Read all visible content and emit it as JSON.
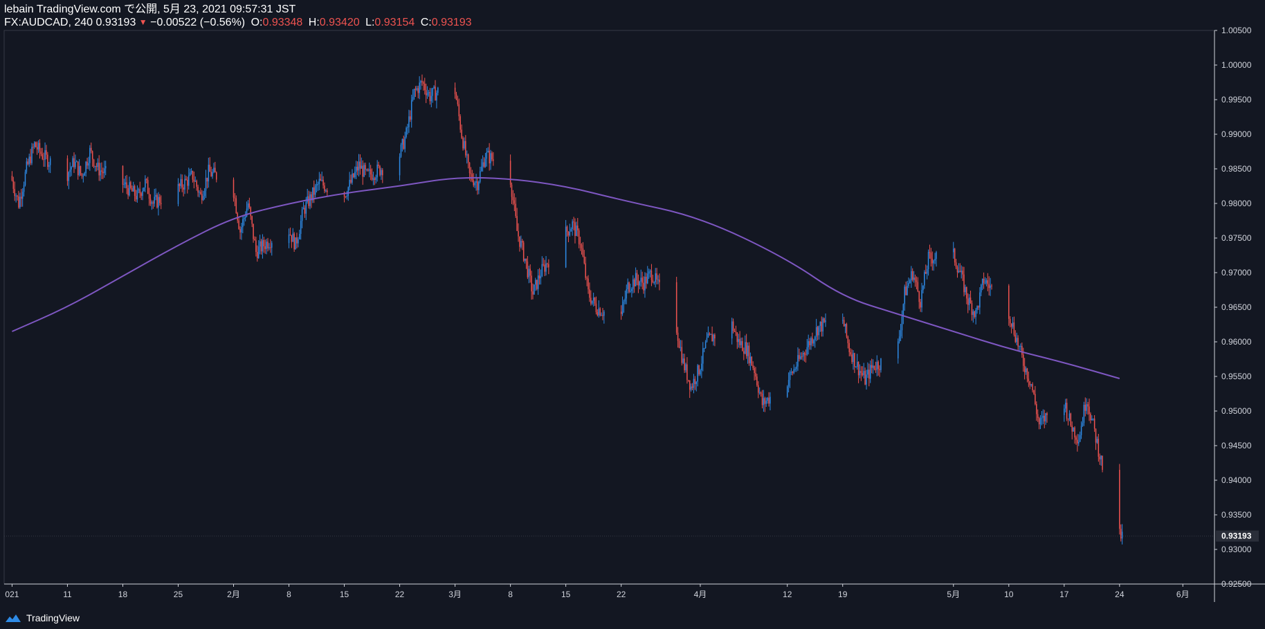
{
  "header": {
    "published": "lebain TradingView.com で公開, 5月 23, 2021 09:57:31 JST",
    "symbol": "FX:AUDCAD, 240",
    "last": "0.93193",
    "change": "−0.00522 (−0.56%)",
    "o_label": "O:",
    "o_value": "0.93348",
    "h_label": "H:",
    "h_value": "0.93420",
    "l_label": "L:",
    "l_value": "0.93154",
    "c_label": "C:",
    "c_value": "0.93193"
  },
  "footer": {
    "brand": "TradingView"
  },
  "colors": {
    "up": "#2e8be6",
    "down": "#ef5350",
    "ma": "#7e57c2",
    "bg": "#131722",
    "axis": "#d1d4dc"
  },
  "chart_data": {
    "type": "candlestick",
    "ylim": [
      0.925,
      1.005
    ],
    "y_ticks": [
      "1.00500",
      "1.00000",
      "0.99500",
      "0.99000",
      "0.98500",
      "0.98000",
      "0.97500",
      "0.97000",
      "0.96500",
      "0.96000",
      "0.95500",
      "0.95000",
      "0.94500",
      "0.94000",
      "0.93500",
      "0.93000",
      "0.92500"
    ],
    "x_ticks": [
      {
        "label": "021",
        "date": "2021-01-04"
      },
      {
        "label": "11",
        "date": "2021-01-11"
      },
      {
        "label": "18",
        "date": "2021-01-18"
      },
      {
        "label": "25",
        "date": "2021-01-25"
      },
      {
        "label": "2月",
        "date": "2021-02-01"
      },
      {
        "label": "8",
        "date": "2021-02-08"
      },
      {
        "label": "15",
        "date": "2021-02-15"
      },
      {
        "label": "22",
        "date": "2021-02-22"
      },
      {
        "label": "3月",
        "date": "2021-03-01"
      },
      {
        "label": "8",
        "date": "2021-03-08"
      },
      {
        "label": "15",
        "date": "2021-03-15"
      },
      {
        "label": "22",
        "date": "2021-03-22"
      },
      {
        "label": "4月",
        "date": "2021-04-01"
      },
      {
        "label": "12",
        "date": "2021-04-12"
      },
      {
        "label": "19",
        "date": "2021-04-19"
      },
      {
        "label": "5月",
        "date": "2021-05-03"
      },
      {
        "label": "10",
        "date": "2021-05-10"
      },
      {
        "label": "17",
        "date": "2021-05-17"
      },
      {
        "label": "24",
        "date": "2021-05-24"
      },
      {
        "label": "6月",
        "date": "2021-06-01"
      }
    ],
    "price_path": [
      [
        "2021-01-04",
        0.984
      ],
      [
        "2021-01-05",
        0.98
      ],
      [
        "2021-01-06",
        0.985
      ],
      [
        "2021-01-07",
        0.9885
      ],
      [
        "2021-01-08",
        0.987
      ],
      [
        "2021-01-11",
        0.984
      ],
      [
        "2021-01-12",
        0.986
      ],
      [
        "2021-01-13",
        0.984
      ],
      [
        "2021-01-14",
        0.9875
      ],
      [
        "2021-01-15",
        0.985
      ],
      [
        "2021-01-18",
        0.983
      ],
      [
        "2021-01-19",
        0.982
      ],
      [
        "2021-01-20",
        0.981
      ],
      [
        "2021-01-21",
        0.983
      ],
      [
        "2021-01-22",
        0.98
      ],
      [
        "2021-01-25",
        0.982
      ],
      [
        "2021-01-26",
        0.983
      ],
      [
        "2021-01-27",
        0.984
      ],
      [
        "2021-01-28",
        0.981
      ],
      [
        "2021-01-29",
        0.9845
      ],
      [
        "2021-02-01",
        0.983
      ],
      [
        "2021-02-02",
        0.976
      ],
      [
        "2021-02-03",
        0.98
      ],
      [
        "2021-02-04",
        0.973
      ],
      [
        "2021-02-05",
        0.974
      ],
      [
        "2021-02-08",
        0.9765
      ],
      [
        "2021-02-09",
        0.974
      ],
      [
        "2021-02-10",
        0.979
      ],
      [
        "2021-02-11",
        0.981
      ],
      [
        "2021-02-12",
        0.983
      ],
      [
        "2021-02-15",
        0.981
      ],
      [
        "2021-02-16",
        0.983
      ],
      [
        "2021-02-17",
        0.9855
      ],
      [
        "2021-02-18",
        0.984
      ],
      [
        "2021-02-19",
        0.9845
      ],
      [
        "2021-02-22",
        0.9865
      ],
      [
        "2021-02-23",
        0.99
      ],
      [
        "2021-02-24",
        0.996
      ],
      [
        "2021-02-25",
        0.9975
      ],
      [
        "2021-02-26",
        0.9955
      ],
      [
        "2021-03-01",
        0.9975
      ],
      [
        "2021-03-02",
        0.99
      ],
      [
        "2021-03-03",
        0.984
      ],
      [
        "2021-03-04",
        0.983
      ],
      [
        "2021-03-05",
        0.987
      ],
      [
        "2021-03-08",
        0.985
      ],
      [
        "2021-03-09",
        0.976
      ],
      [
        "2021-03-10",
        0.972
      ],
      [
        "2021-03-11",
        0.967
      ],
      [
        "2021-03-12",
        0.97
      ],
      [
        "2021-03-15",
        0.9755
      ],
      [
        "2021-03-16",
        0.977
      ],
      [
        "2021-03-17",
        0.9745
      ],
      [
        "2021-03-18",
        0.967
      ],
      [
        "2021-03-19",
        0.965
      ],
      [
        "2021-03-22",
        0.963
      ],
      [
        "2021-03-23",
        0.968
      ],
      [
        "2021-03-24",
        0.969
      ],
      [
        "2021-03-25",
        0.9685
      ],
      [
        "2021-03-26",
        0.97
      ],
      [
        "2021-03-29",
        0.963
      ],
      [
        "2021-03-30",
        0.957
      ],
      [
        "2021-03-31",
        0.9535
      ],
      [
        "2021-04-01",
        0.956
      ],
      [
        "2021-04-02",
        0.96
      ],
      [
        "2021-04-05",
        0.963
      ],
      [
        "2021-04-06",
        0.96
      ],
      [
        "2021-04-07",
        0.959
      ],
      [
        "2021-04-08",
        0.956
      ],
      [
        "2021-04-09",
        0.951
      ],
      [
        "2021-04-12",
        0.954
      ],
      [
        "2021-04-13",
        0.956
      ],
      [
        "2021-04-14",
        0.958
      ],
      [
        "2021-04-15",
        0.96
      ],
      [
        "2021-04-16",
        0.962
      ],
      [
        "2021-04-19",
        0.964
      ],
      [
        "2021-04-20",
        0.959
      ],
      [
        "2021-04-21",
        0.9565
      ],
      [
        "2021-04-22",
        0.9545
      ],
      [
        "2021-04-23",
        0.9565
      ],
      [
        "2021-04-26",
        0.958
      ],
      [
        "2021-04-27",
        0.967
      ],
      [
        "2021-04-28",
        0.97
      ],
      [
        "2021-04-29",
        0.966
      ],
      [
        "2021-04-30",
        0.972
      ],
      [
        "2021-05-03",
        0.973
      ],
      [
        "2021-05-04",
        0.97
      ],
      [
        "2021-05-05",
        0.966
      ],
      [
        "2021-05-06",
        0.964
      ],
      [
        "2021-05-07",
        0.969
      ],
      [
        "2021-05-10",
        0.965
      ],
      [
        "2021-05-11",
        0.961
      ],
      [
        "2021-05-12",
        0.957
      ],
      [
        "2021-05-13",
        0.954
      ],
      [
        "2021-05-14",
        0.948
      ],
      [
        "2021-05-17",
        0.952
      ],
      [
        "2021-05-18",
        0.948
      ],
      [
        "2021-05-19",
        0.946
      ],
      [
        "2021-05-20",
        0.952
      ],
      [
        "2021-05-21",
        0.947
      ],
      [
        "2021-05-24",
        0.9319
      ]
    ],
    "ma_path": [
      [
        "2021-01-04",
        0.9615
      ],
      [
        "2021-01-11",
        0.965
      ],
      [
        "2021-01-18",
        0.9695
      ],
      [
        "2021-01-25",
        0.974
      ],
      [
        "2021-02-01",
        0.978
      ],
      [
        "2021-02-08",
        0.98
      ],
      [
        "2021-02-15",
        0.9815
      ],
      [
        "2021-02-22",
        0.9825
      ],
      [
        "2021-03-01",
        0.9838
      ],
      [
        "2021-03-08",
        0.9836
      ],
      [
        "2021-03-15",
        0.9825
      ],
      [
        "2021-03-22",
        0.9805
      ],
      [
        "2021-04-01",
        0.978
      ],
      [
        "2021-04-12",
        0.972
      ],
      [
        "2021-04-19",
        0.9665
      ],
      [
        "2021-04-26",
        0.964
      ],
      [
        "2021-05-03",
        0.9615
      ],
      [
        "2021-05-10",
        0.959
      ],
      [
        "2021-05-17",
        0.957
      ],
      [
        "2021-05-24",
        0.9547
      ]
    ],
    "last_price_label": "0.93193",
    "grid": false
  }
}
